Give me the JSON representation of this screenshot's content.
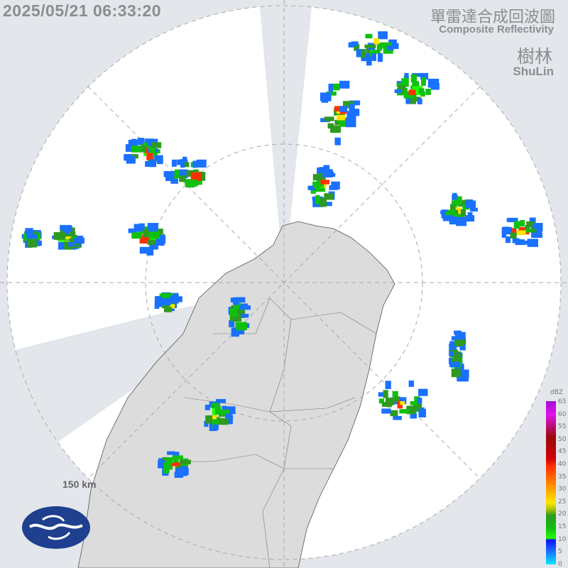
{
  "header": {
    "timestamp": "2025/05/21 06:33:20",
    "title_zh": "單雷達合成回波圖",
    "title_en": "Composite Reflectivity",
    "station_zh": "樹林",
    "station_en": "ShuLin"
  },
  "map": {
    "range_label": "150 km",
    "background_color": "#e3e6ea",
    "coverage_color": "#ffffff",
    "land_color": "#dcdcdc"
  },
  "legend": {
    "unit": "dBZ",
    "ticks": [
      "65",
      "60",
      "55",
      "50",
      "45",
      "40",
      "35",
      "30",
      "25",
      "20",
      "15",
      "10",
      "5",
      "0"
    ]
  },
  "logo": {
    "name": "cwa-logo-icon"
  }
}
